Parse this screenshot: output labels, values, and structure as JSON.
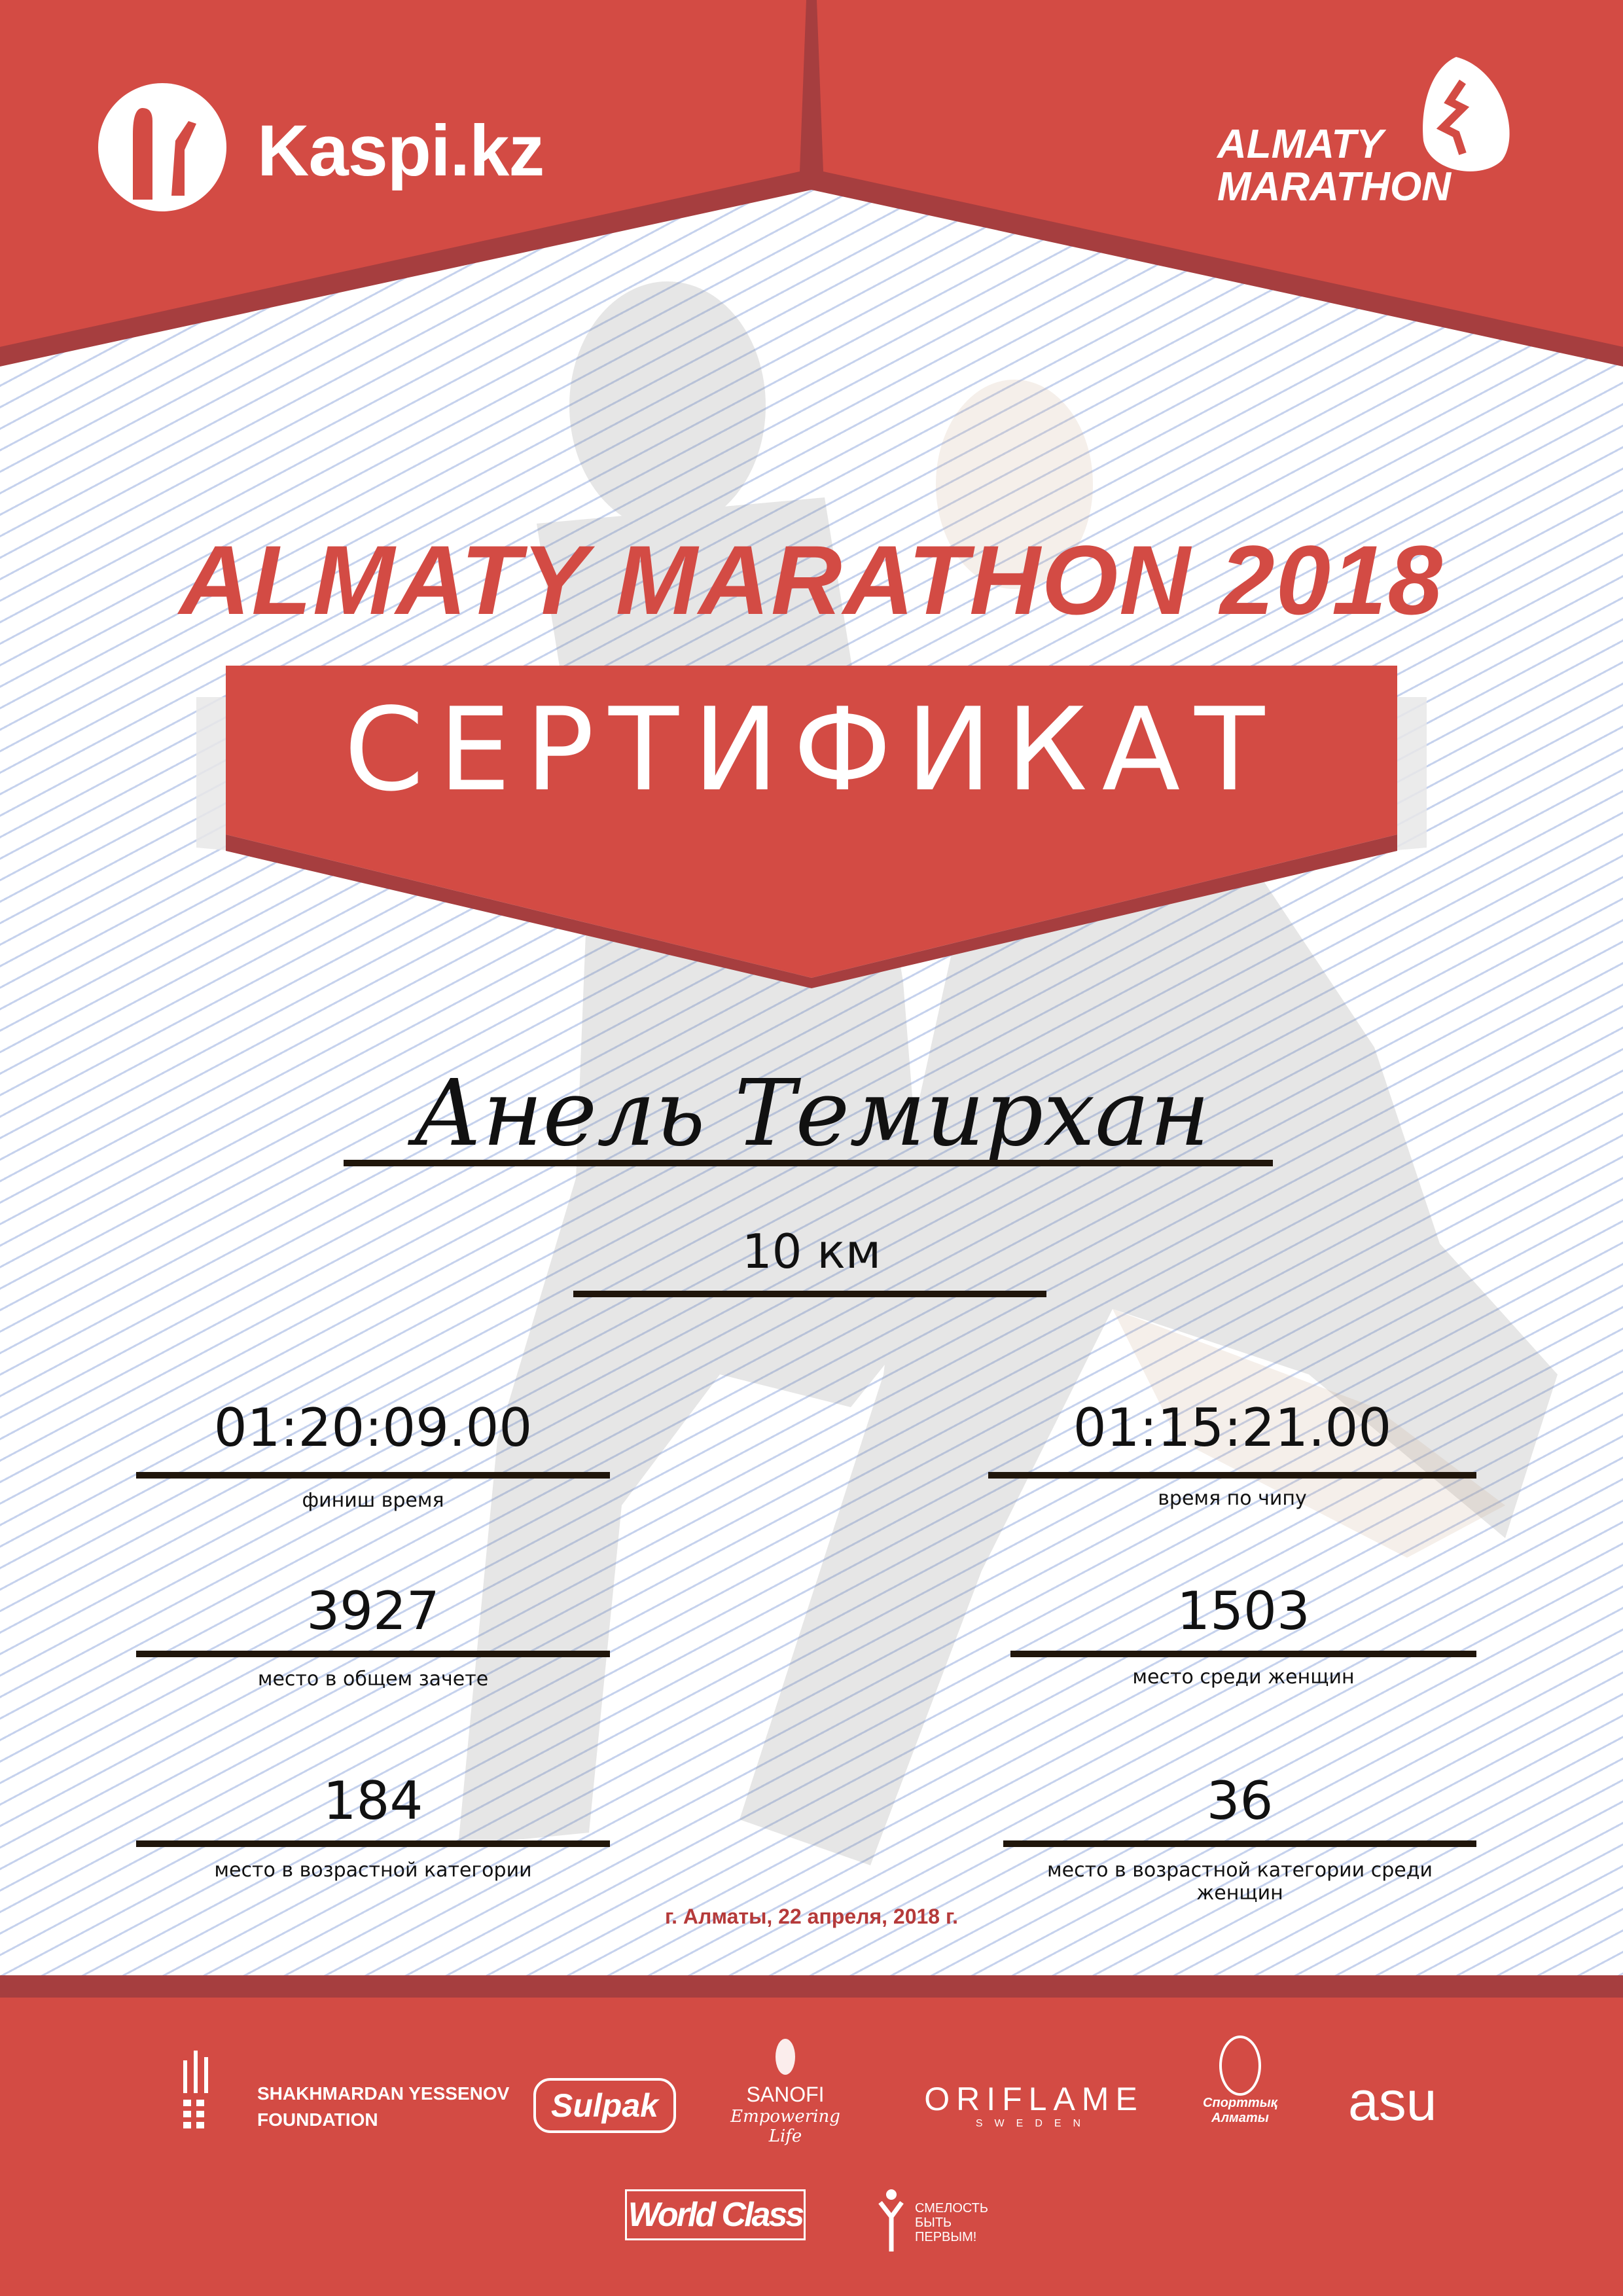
{
  "colors": {
    "primary_red": "#d34b44",
    "dark_red": "#a63e3f",
    "date_red": "#b53a3a",
    "line_blue": "#96acde"
  },
  "header": {
    "left_logo": {
      "text": "Kaspi.kz",
      "icon": "kaspi-family-icon"
    },
    "right_logo": {
      "line1": "ALMATY",
      "line2": "MARATHON",
      "icon": "runner-icon"
    }
  },
  "title": "ALMATY MARATHON 2018",
  "certificate_label": "СЕРТИФИКАТ",
  "participant": {
    "name": "Анель Темирхан",
    "distance": "10 км"
  },
  "results": [
    {
      "value": "01:20:09.00",
      "label": "финиш время"
    },
    {
      "value": "01:15:21.00",
      "label": "время по чипу"
    },
    {
      "value": "3927",
      "label": "место в общем зачете"
    },
    {
      "value": "1503",
      "label": "место среди женщин"
    },
    {
      "value": "184",
      "label": "место в возрастной категории"
    },
    {
      "value": "36",
      "label": "место в возрастной категории среди женщин"
    }
  ],
  "date_line": "г. Алматы, 22 апреля, 2018 г.",
  "sponsors": {
    "yessenov": {
      "line1": "SHAKHMARDAN YESSENOV",
      "line2": "FOUNDATION"
    },
    "sulpak": "Sulpak",
    "sanofi": {
      "name": "SANOFI",
      "tagline": "Empowering Life"
    },
    "oriflame": {
      "name": "ORIFLAME",
      "sub": "SWEDEN"
    },
    "sport_almaty": {
      "line1": "Спорттық",
      "line2": "Алматы"
    },
    "asu": "asu",
    "worldclass": "World Class",
    "fund": {
      "line1": "СМЕЛОСТЬ",
      "line2": "БЫТЬ",
      "line3": "ПЕРВЫМ!"
    }
  }
}
